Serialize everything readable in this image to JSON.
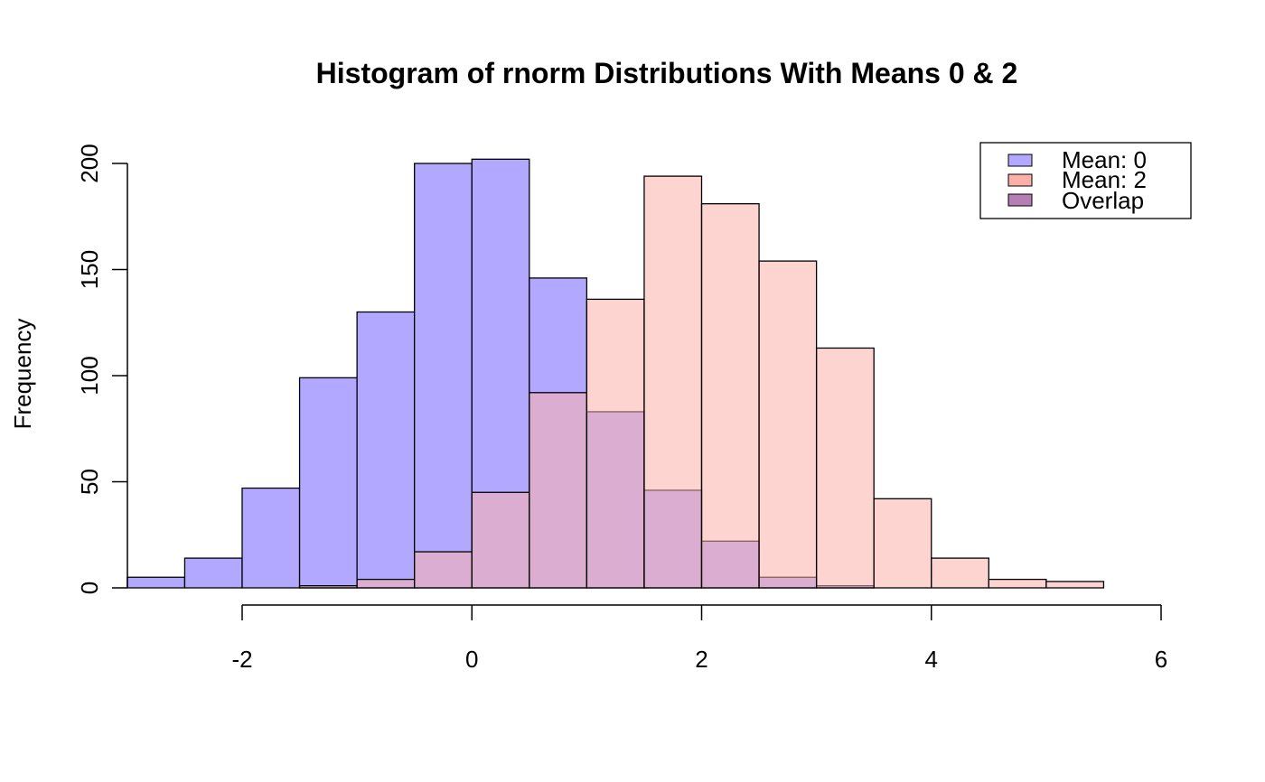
{
  "chart_data": {
    "type": "bar",
    "subtype": "overlapping-histogram",
    "title": "Histogram of rnorm Distributions With Means 0 & 2",
    "xlabel": "",
    "ylabel": "Frequency",
    "xlim": [
      -3,
      6
    ],
    "ylim": [
      0,
      200
    ],
    "x_ticks": [
      -2,
      0,
      2,
      4,
      6
    ],
    "x_tick_labels": [
      "-2",
      "0",
      "2",
      "4",
      "6"
    ],
    "y_ticks": [
      0,
      50,
      100,
      150,
      200
    ],
    "y_tick_labels": [
      "0",
      "50",
      "100",
      "150",
      "200"
    ],
    "grid": false,
    "legend_position": "top-right",
    "series": [
      {
        "name": "Mean: 0",
        "color": "#B3A8FF",
        "bins": [
          {
            "x0": -3.0,
            "x1": -2.5,
            "count": 5
          },
          {
            "x0": -2.5,
            "x1": -2.0,
            "count": 14
          },
          {
            "x0": -2.0,
            "x1": -1.5,
            "count": 47
          },
          {
            "x0": -1.5,
            "x1": -1.0,
            "count": 99
          },
          {
            "x0": -1.0,
            "x1": -0.5,
            "count": 130
          },
          {
            "x0": -0.5,
            "x1": 0.0,
            "count": 200
          },
          {
            "x0": 0.0,
            "x1": 0.5,
            "count": 202
          },
          {
            "x0": 0.5,
            "x1": 1.0,
            "count": 146
          },
          {
            "x0": 1.0,
            "x1": 1.5,
            "count": 83
          },
          {
            "x0": 1.5,
            "x1": 2.0,
            "count": 46
          },
          {
            "x0": 2.0,
            "x1": 2.5,
            "count": 22
          },
          {
            "x0": 2.5,
            "x1": 3.0,
            "count": 5
          },
          {
            "x0": 3.0,
            "x1": 3.5,
            "count": 1
          }
        ]
      },
      {
        "name": "Mean: 2",
        "color": "#FBB1AA",
        "bins": [
          {
            "x0": -1.5,
            "x1": -1.0,
            "count": 1
          },
          {
            "x0": -1.0,
            "x1": -0.5,
            "count": 4
          },
          {
            "x0": -0.5,
            "x1": 0.0,
            "count": 17
          },
          {
            "x0": 0.0,
            "x1": 0.5,
            "count": 45
          },
          {
            "x0": 0.5,
            "x1": 1.0,
            "count": 92
          },
          {
            "x0": 1.0,
            "x1": 1.5,
            "count": 136
          },
          {
            "x0": 1.5,
            "x1": 2.0,
            "count": 194
          },
          {
            "x0": 2.0,
            "x1": 2.5,
            "count": 181
          },
          {
            "x0": 2.5,
            "x1": 3.0,
            "count": 154
          },
          {
            "x0": 3.0,
            "x1": 3.5,
            "count": 113
          },
          {
            "x0": 3.5,
            "x1": 4.0,
            "count": 42
          },
          {
            "x0": 4.0,
            "x1": 4.5,
            "count": 14
          },
          {
            "x0": 4.5,
            "x1": 5.0,
            "count": 4
          },
          {
            "x0": 5.0,
            "x1": 5.5,
            "count": 3
          }
        ]
      }
    ],
    "legend": [
      {
        "label": "Mean: 0",
        "color": "#B3A8FF"
      },
      {
        "label": "Mean: 2",
        "color": "#FBB1AA"
      },
      {
        "label": "Overlap",
        "color": "#B57FB5"
      }
    ],
    "overlap_color": "#DF8FA6"
  }
}
